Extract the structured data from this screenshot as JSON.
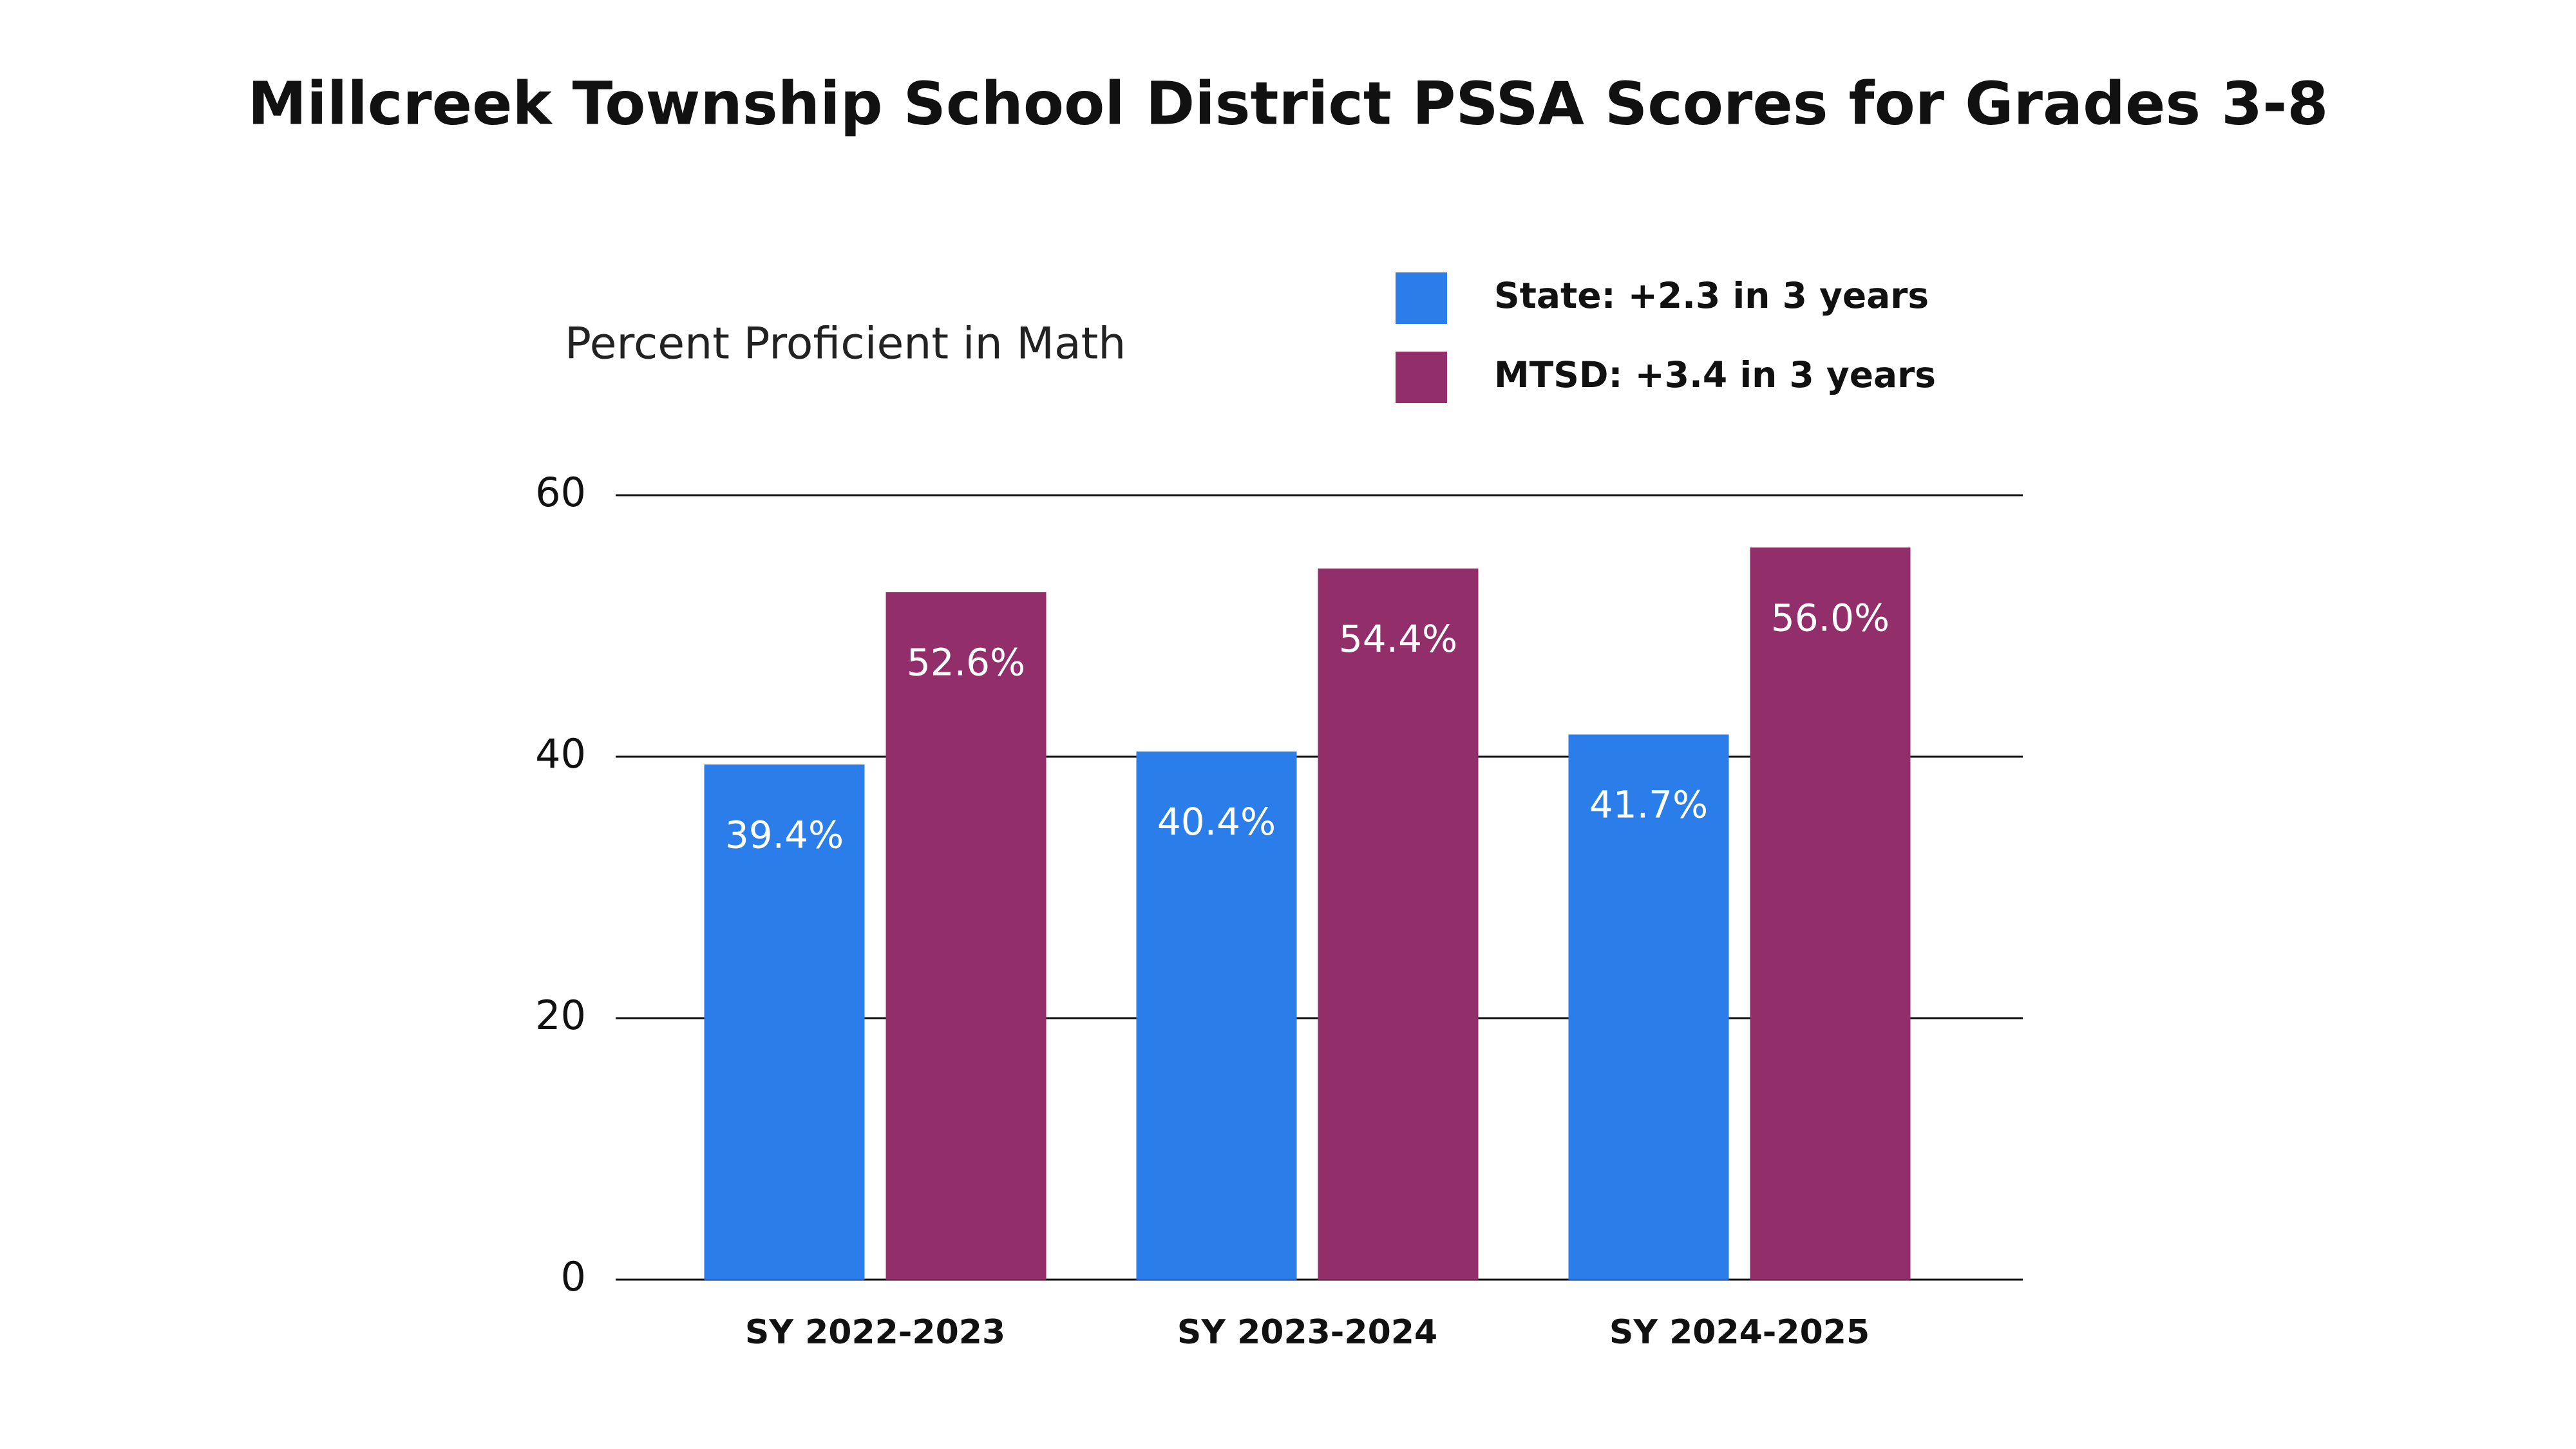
{
  "chart_data": {
    "type": "bar",
    "title": "Millcreek Township School District PSSA Scores for Grades 3-8",
    "y_label": "Percent Proficient in Math",
    "categories": [
      "SY 2022-2023",
      "SY 2023-2024",
      "SY 2024-2025"
    ],
    "series": [
      {
        "name": "State: +2.3 in 3 years",
        "color": "#2b7de9",
        "values": [
          39.4,
          40.4,
          41.7
        ],
        "value_labels": [
          "39.4%",
          "40.4%",
          "41.7%"
        ]
      },
      {
        "name": "MTSD: +3.4 in 3 years",
        "color": "#922f6b",
        "values": [
          52.6,
          54.4,
          56.0
        ],
        "value_labels": [
          "52.6%",
          "54.4%",
          "56.0%"
        ]
      }
    ],
    "ylim": [
      0,
      60
    ],
    "yticks": [
      0,
      20,
      40,
      60
    ],
    "grid": true
  }
}
